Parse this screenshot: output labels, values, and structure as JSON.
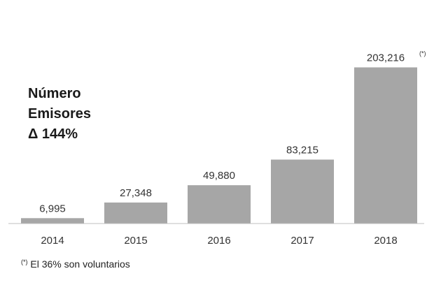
{
  "chart_data": {
    "type": "bar",
    "categories": [
      "2014",
      "2015",
      "2016",
      "2017",
      "2018"
    ],
    "values": [
      6995,
      27348,
      49880,
      83215,
      203216
    ],
    "value_labels": [
      "6,995",
      "27,348",
      "49,880",
      "83,215",
      "203,216"
    ],
    "annotations": [
      "",
      "",
      "",
      "",
      "(*)"
    ],
    "ylim": [
      0,
      220000
    ],
    "grid": false,
    "bar_color": "#a6a6a6",
    "axis_color": "#bfbfbf",
    "title": "Número Emisores",
    "title_lines": [
      "Número",
      "Emisores"
    ],
    "subtitle": "Δ 144%"
  },
  "footnote": {
    "marker": "(*)",
    "text": " El 36% son voluntarios"
  }
}
